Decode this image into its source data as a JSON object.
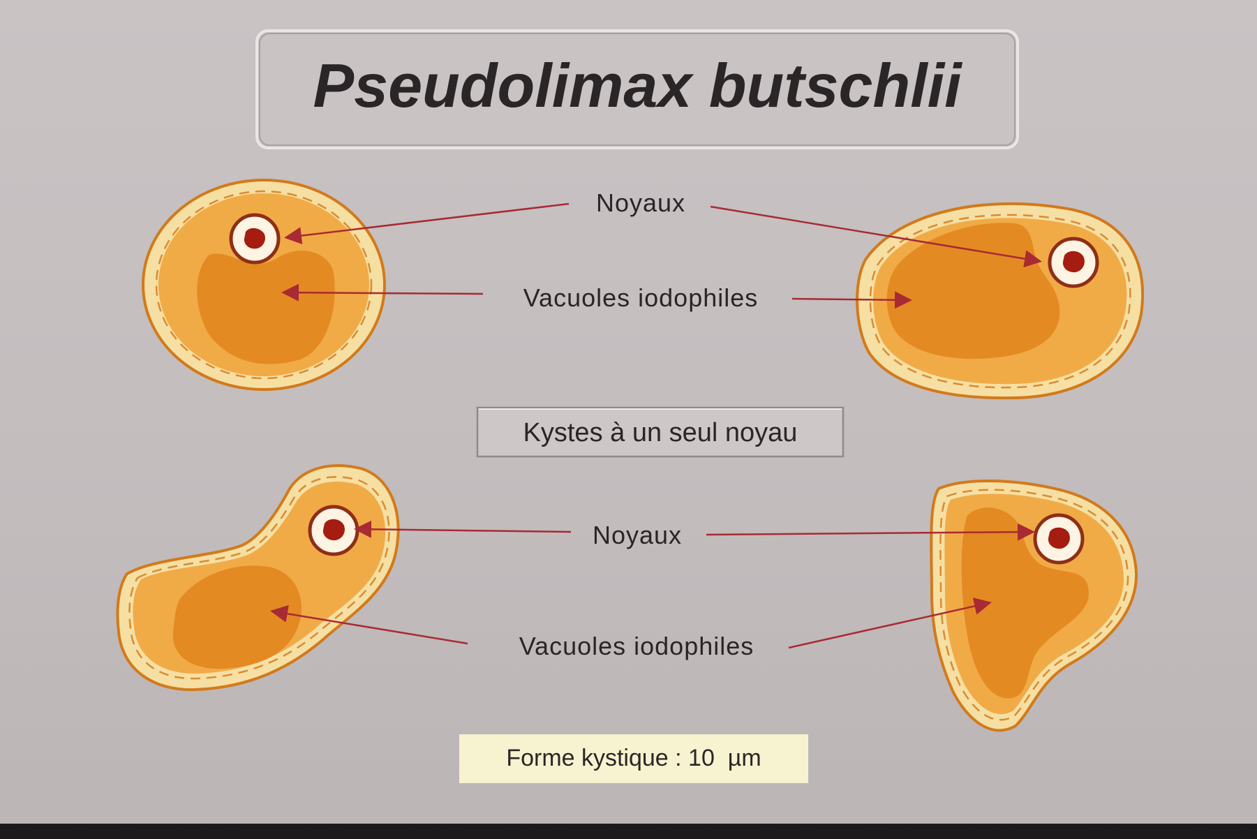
{
  "title": "Pseudolimax butschlii",
  "top_labels": {
    "nuclei": "Noyaux",
    "vacuoles": "Vacuoles iodophiles"
  },
  "middle_box": "Kystes à un seul noyau",
  "bottom_labels": {
    "nuclei": "Noyaux",
    "vacuoles": "Vacuoles iodophiles"
  },
  "scale_box": "Forme kystique : 10  µm",
  "colors": {
    "background": "#c6c0c1",
    "cyst_rim": "#f6dfa2",
    "cyst_body": "#f0ab47",
    "vacuole": "#e48a22",
    "outline": "#d27a1c",
    "nucleus_core": "#a51c10",
    "arrow": "#a82a33",
    "scale_box": "#f7f3d0"
  }
}
